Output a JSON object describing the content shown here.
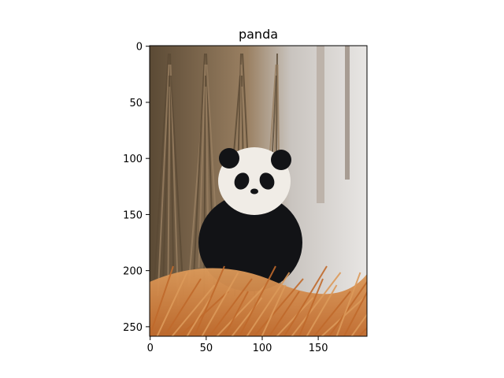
{
  "chart_data": {
    "type": "image",
    "title": "panda",
    "xlabel": "",
    "ylabel": "",
    "image_width": 194,
    "image_height": 259,
    "xlim": [
      -0.5,
      193.5
    ],
    "ylim": [
      258.5,
      -0.5
    ],
    "x_ticks": [
      0,
      50,
      100,
      150
    ],
    "y_ticks": [
      0,
      50,
      100,
      150,
      200,
      250
    ],
    "grid": false,
    "legend": "none"
  },
  "palette": {
    "spine": "#000000",
    "sky": "#c9c4bf",
    "bamboo_dark": "#5b4a35",
    "bamboo_light": "#9a8062",
    "grass_orange": "#c06a2c",
    "grass_light": "#dc9a5a",
    "panda_white": "#f0ece6",
    "panda_black": "#121316",
    "snow": "#e8e6e4"
  }
}
